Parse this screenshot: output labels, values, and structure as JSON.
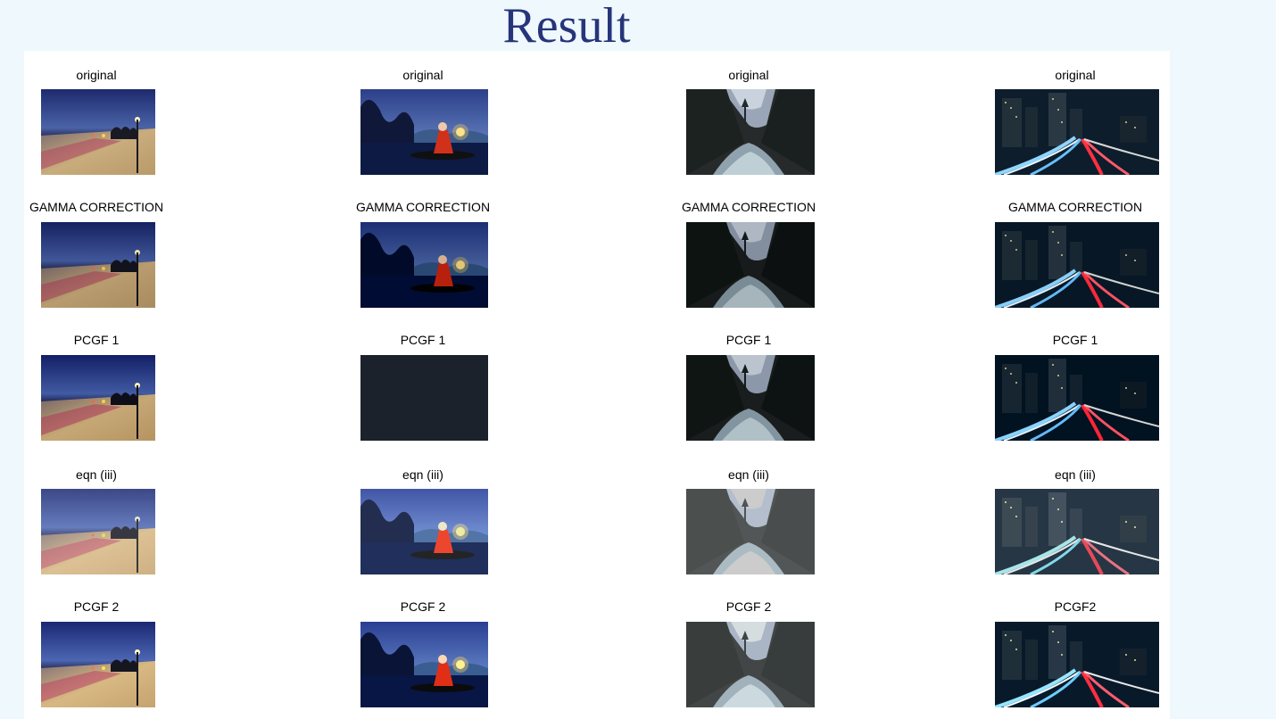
{
  "title": "Result",
  "rows": [
    {
      "captions": [
        "original",
        "original",
        "original",
        "original"
      ],
      "images": [
        "beach-night-photo",
        "fisherman-lantern-photo",
        "mountain-river-photo",
        "city-light-trails-photo"
      ]
    },
    {
      "captions": [
        "GAMMA CORRECTION",
        "GAMMA CORRECTION",
        "GAMMA CORRECTION",
        "GAMMA CORRECTION"
      ],
      "images": [
        "beach-night-photo",
        "fisherman-lantern-photo",
        "mountain-river-photo",
        "city-light-trails-photo"
      ]
    },
    {
      "captions": [
        "PCGF 1",
        "PCGF 1",
        "PCGF 1",
        "PCGF 1"
      ],
      "images": [
        "beach-night-photo",
        "dark-blank-photo",
        "mountain-river-photo",
        "city-light-trails-photo"
      ]
    },
    {
      "captions": [
        "eqn (iii)",
        "eqn (iii)",
        "eqn (iii)",
        "eqn (iii)"
      ],
      "images": [
        "beach-night-photo",
        "fisherman-lantern-photo",
        "mountain-river-photo",
        "city-light-trails-photo"
      ]
    },
    {
      "captions": [
        "PCGF 2",
        "PCGF 2",
        "PCGF 2",
        "PCGF2"
      ],
      "images": [
        "beach-night-photo",
        "fisherman-lantern-photo",
        "mountain-river-photo",
        "city-light-trails-photo"
      ]
    }
  ],
  "colors": {
    "background": "#eef8fd",
    "panel": "#ffffff",
    "title": "#26357a"
  }
}
